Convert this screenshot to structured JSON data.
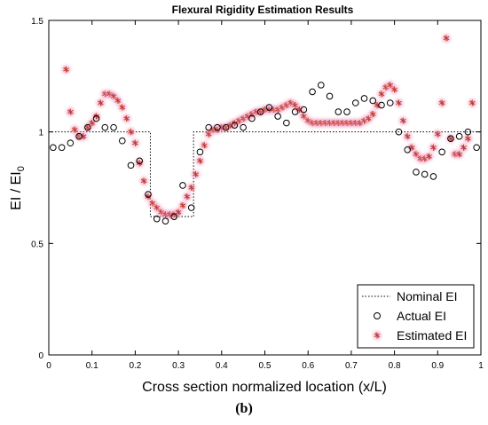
{
  "chart_data": {
    "type": "scatter",
    "title": "Flexural Rigidity Estimation Results",
    "xlabel": "Cross section normalized location (x/L)",
    "ylabel": {
      "base": "EI / EI",
      "subscript": "0"
    },
    "xlim": [
      0,
      1
    ],
    "ylim": [
      0,
      1.5
    ],
    "xticks": [
      "0",
      "0.1",
      "0.2",
      "0.3",
      "0.4",
      "0.5",
      "0.6",
      "0.7",
      "0.8",
      "0.9",
      "1"
    ],
    "yticks": [
      "0",
      "0.5",
      "1",
      "1.5"
    ],
    "grid": false,
    "legend_position": "bottom-right",
    "series": [
      {
        "name": "Nominal EI",
        "style": "dotted-line",
        "color": "#000000",
        "x": [
          0,
          0.235,
          0.235,
          0.335,
          0.335,
          1
        ],
        "y": [
          1.0,
          1.0,
          0.62,
          0.62,
          1.0,
          1.0
        ]
      },
      {
        "name": "Actual EI",
        "style": "open-circle",
        "color": "#000000",
        "x": [
          0.01,
          0.03,
          0.05,
          0.07,
          0.09,
          0.11,
          0.13,
          0.15,
          0.17,
          0.19,
          0.21,
          0.23,
          0.25,
          0.27,
          0.29,
          0.31,
          0.33,
          0.35,
          0.37,
          0.39,
          0.41,
          0.43,
          0.45,
          0.47,
          0.49,
          0.51,
          0.53,
          0.55,
          0.57,
          0.59,
          0.61,
          0.63,
          0.65,
          0.67,
          0.69,
          0.71,
          0.73,
          0.75,
          0.77,
          0.79,
          0.81,
          0.83,
          0.85,
          0.87,
          0.89,
          0.91,
          0.93,
          0.95,
          0.97,
          0.99
        ],
        "y": [
          0.93,
          0.93,
          0.95,
          0.98,
          1.02,
          1.06,
          1.02,
          1.02,
          0.96,
          0.85,
          0.87,
          0.72,
          0.61,
          0.6,
          0.62,
          0.76,
          0.66,
          0.91,
          1.02,
          1.02,
          1.02,
          1.03,
          1.02,
          1.06,
          1.09,
          1.11,
          1.07,
          1.04,
          1.09,
          1.1,
          1.18,
          1.21,
          1.16,
          1.09,
          1.09,
          1.13,
          1.15,
          1.14,
          1.12,
          1.13,
          1.0,
          0.92,
          0.82,
          0.81,
          0.8,
          0.91,
          0.97,
          0.98,
          1.0,
          0.93
        ]
      },
      {
        "name": "Estimated EI",
        "style": "asterisk",
        "color": "#c0392b",
        "x": [
          0.04,
          0.05,
          0.06,
          0.07,
          0.08,
          0.09,
          0.1,
          0.11,
          0.12,
          0.13,
          0.14,
          0.15,
          0.16,
          0.17,
          0.18,
          0.19,
          0.2,
          0.21,
          0.22,
          0.23,
          0.24,
          0.25,
          0.26,
          0.27,
          0.28,
          0.29,
          0.3,
          0.31,
          0.32,
          0.33,
          0.34,
          0.35,
          0.36,
          0.37,
          0.38,
          0.39,
          0.4,
          0.41,
          0.42,
          0.43,
          0.44,
          0.45,
          0.46,
          0.47,
          0.48,
          0.49,
          0.5,
          0.51,
          0.52,
          0.53,
          0.54,
          0.55,
          0.56,
          0.57,
          0.58,
          0.59,
          0.6,
          0.61,
          0.62,
          0.63,
          0.64,
          0.65,
          0.66,
          0.67,
          0.68,
          0.69,
          0.7,
          0.71,
          0.72,
          0.73,
          0.74,
          0.75,
          0.76,
          0.77,
          0.78,
          0.79,
          0.8,
          0.81,
          0.82,
          0.83,
          0.84,
          0.85,
          0.86,
          0.87,
          0.88,
          0.89,
          0.9,
          0.91,
          0.92,
          0.93,
          0.94,
          0.95,
          0.96,
          0.97,
          0.98
        ],
        "y": [
          1.28,
          1.09,
          1.01,
          0.98,
          0.98,
          1.02,
          1.04,
          1.07,
          1.13,
          1.17,
          1.17,
          1.16,
          1.14,
          1.11,
          1.06,
          1.0,
          0.95,
          0.86,
          0.78,
          0.71,
          0.68,
          0.66,
          0.64,
          0.63,
          0.63,
          0.63,
          0.64,
          0.67,
          0.71,
          0.75,
          0.81,
          0.87,
          0.94,
          0.99,
          1.01,
          1.01,
          1.02,
          1.02,
          1.03,
          1.04,
          1.05,
          1.06,
          1.07,
          1.08,
          1.09,
          1.09,
          1.1,
          1.1,
          1.1,
          1.1,
          1.11,
          1.12,
          1.13,
          1.12,
          1.1,
          1.07,
          1.05,
          1.04,
          1.04,
          1.04,
          1.04,
          1.04,
          1.04,
          1.04,
          1.04,
          1.04,
          1.04,
          1.04,
          1.04,
          1.05,
          1.06,
          1.08,
          1.12,
          1.17,
          1.2,
          1.21,
          1.19,
          1.13,
          1.05,
          0.98,
          0.93,
          0.9,
          0.88,
          0.88,
          0.89,
          0.93,
          0.99,
          1.13,
          1.42,
          0.97,
          0.9,
          0.9,
          0.93,
          0.97,
          1.13
        ]
      }
    ]
  },
  "caption": "(b)"
}
